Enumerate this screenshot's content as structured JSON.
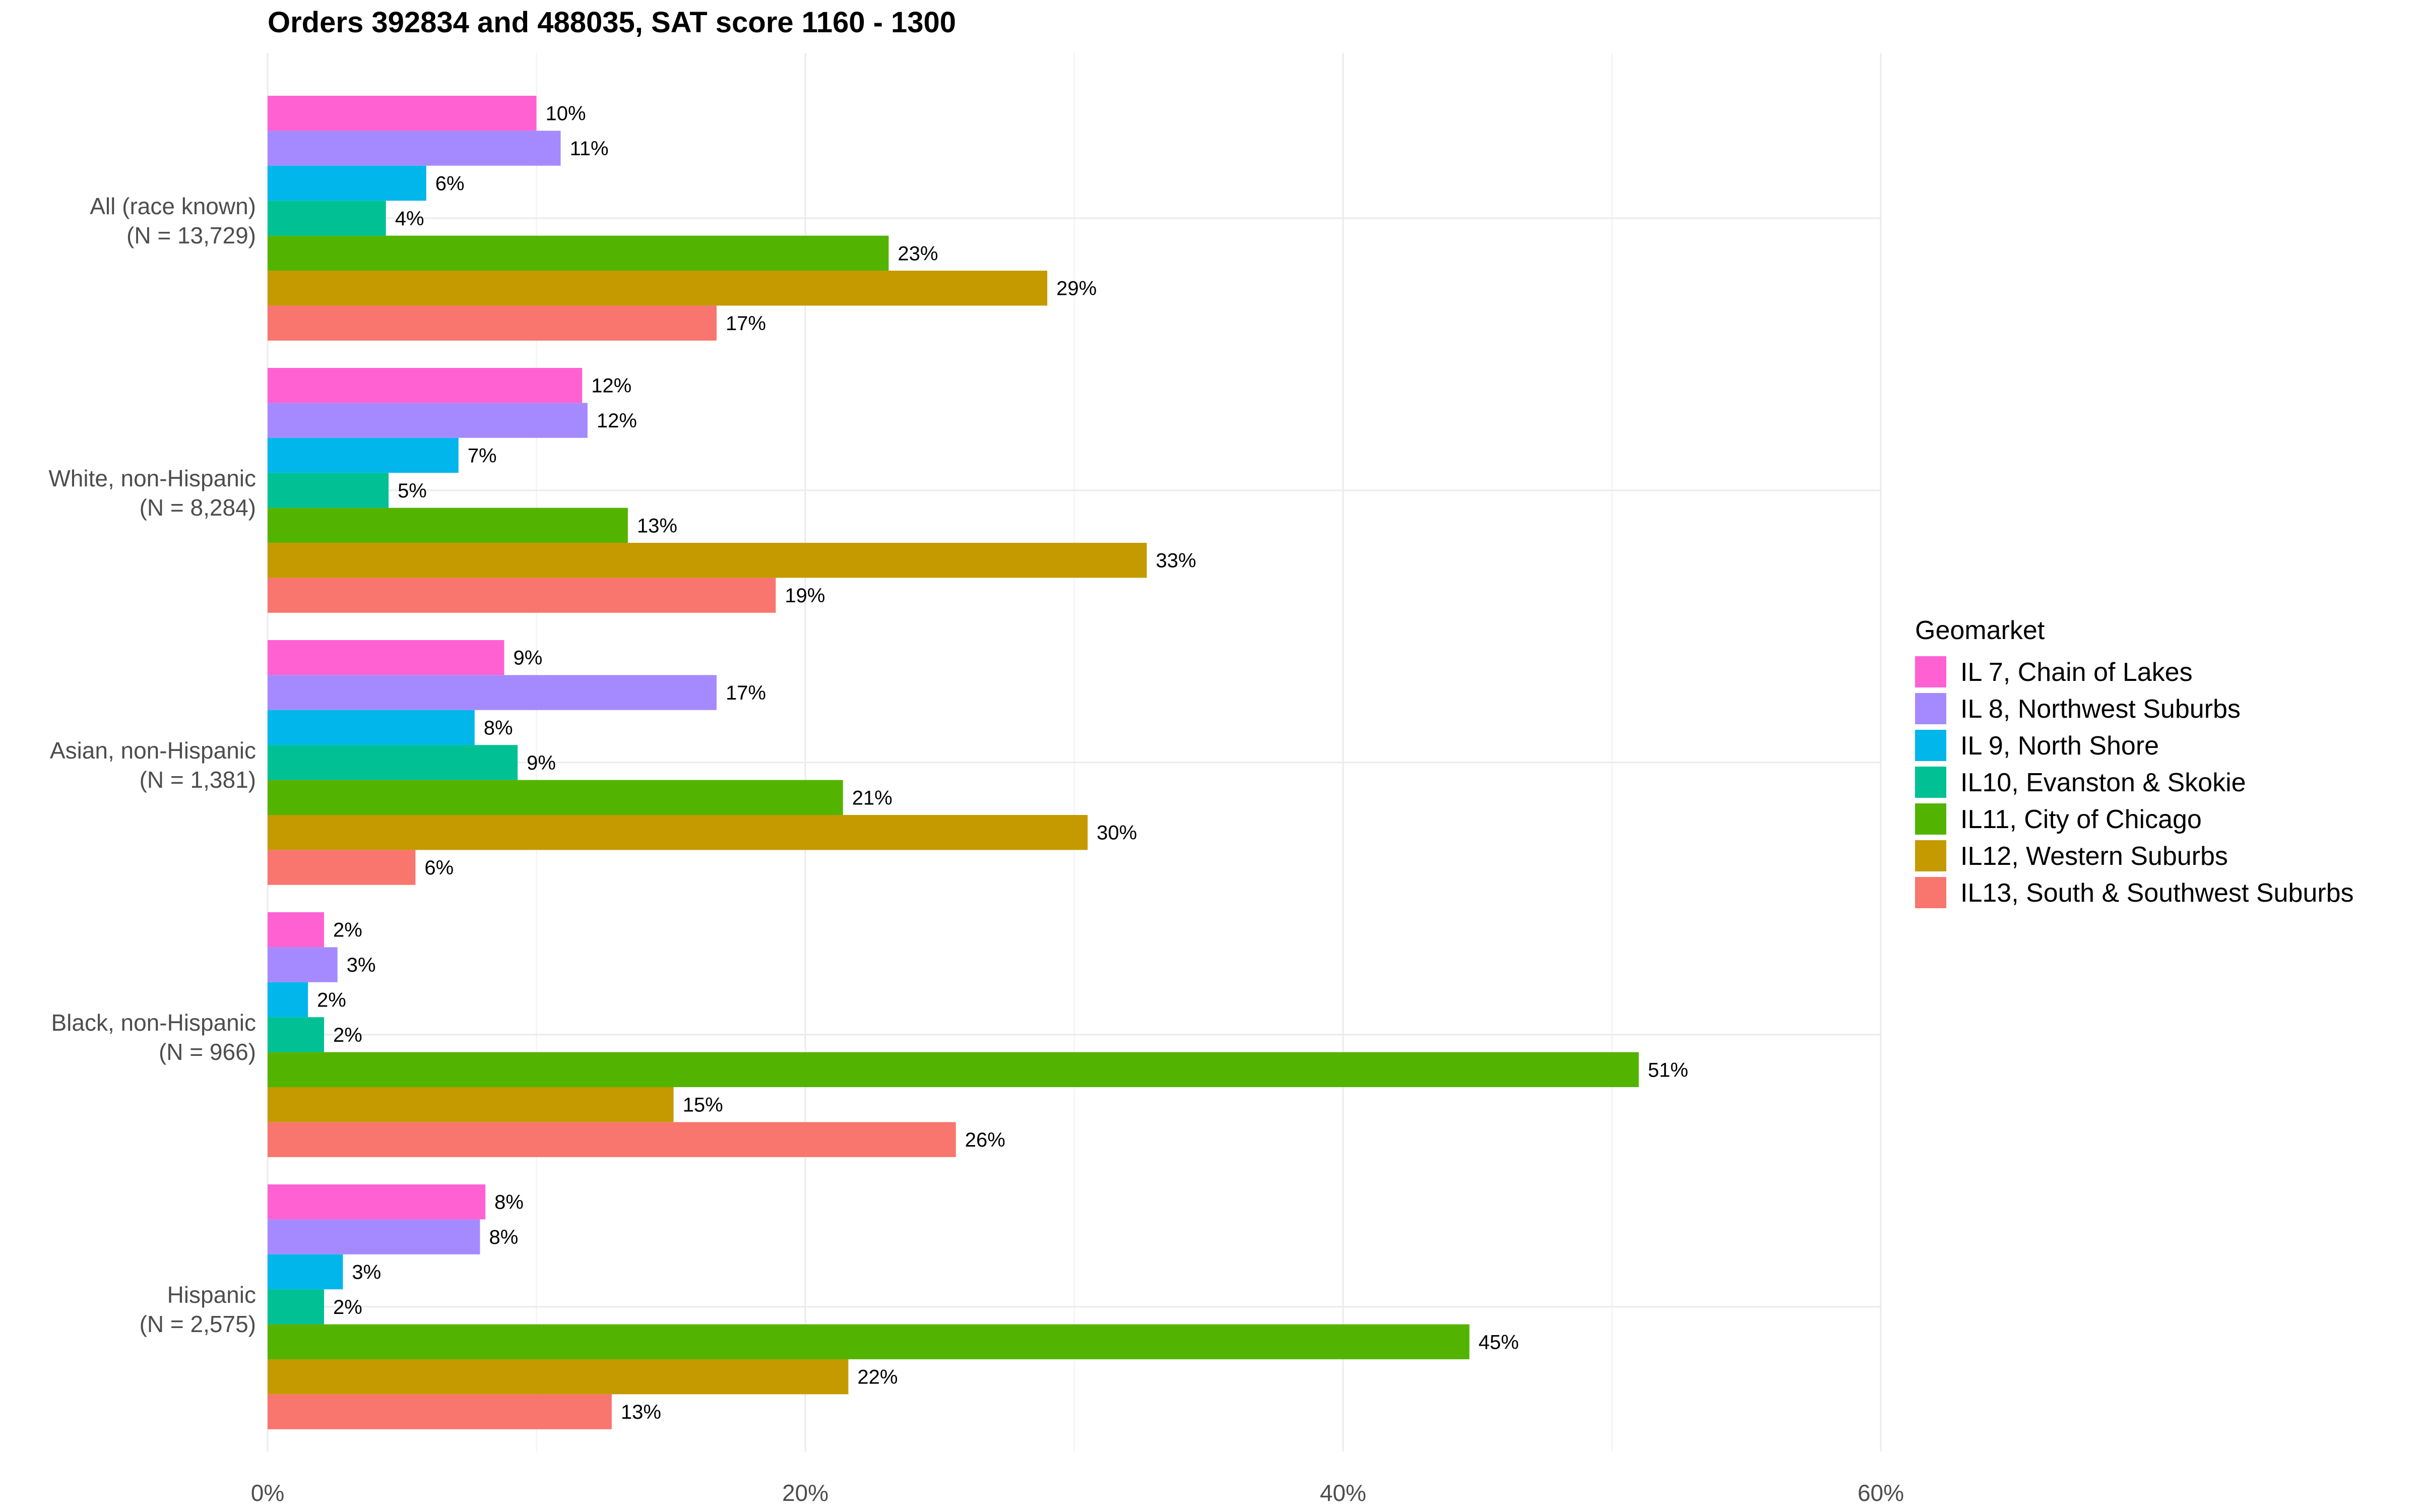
{
  "chart_data": {
    "type": "bar",
    "orientation": "horizontal",
    "title": "Orders 392834 and 488035, SAT score 1160 - 1300",
    "xlabel": "",
    "ylabel": "",
    "xlim": [
      0,
      60
    ],
    "x_ticks": [
      0,
      20,
      40,
      60
    ],
    "x_tick_labels": [
      "0%",
      "20%",
      "40%",
      "60%"
    ],
    "grid": true,
    "legend_title": "Geomarket",
    "legend_position": "right",
    "categories": [
      {
        "name": "All (race known)",
        "n": "(N = 13,729)"
      },
      {
        "name": "White, non-Hispanic",
        "n": "(N = 8,284)"
      },
      {
        "name": "Asian, non-Hispanic",
        "n": "(N = 1,381)"
      },
      {
        "name": "Black, non-Hispanic",
        "n": "(N = 966)"
      },
      {
        "name": "Hispanic",
        "n": "(N = 2,575)"
      }
    ],
    "series": [
      {
        "name": "IL 7, Chain of Lakes",
        "color": "#FF61D2",
        "values": [
          10,
          11.7,
          8.8,
          2.1,
          8.1
        ],
        "labels": [
          "10%",
          "12%",
          "9%",
          "2%",
          "8%"
        ]
      },
      {
        "name": "IL 8, Northwest Suburbs",
        "color": "#A58AFF",
        "values": [
          10.9,
          11.9,
          16.7,
          2.6,
          7.9
        ],
        "labels": [
          "11%",
          "12%",
          "17%",
          "3%",
          "8%"
        ]
      },
      {
        "name": "IL 9, North Shore",
        "color": "#00B6EB",
        "values": [
          5.9,
          7.1,
          7.7,
          1.5,
          2.8
        ],
        "labels": [
          "6%",
          "7%",
          "8%",
          "2%",
          "3%"
        ]
      },
      {
        "name": "IL10, Evanston & Skokie",
        "color": "#00C094",
        "values": [
          4.4,
          4.5,
          9.3,
          2.1,
          2.1
        ],
        "labels": [
          "4%",
          "5%",
          "9%",
          "2%",
          "2%"
        ]
      },
      {
        "name": "IL11, City of Chicago",
        "color": "#53B400",
        "values": [
          23.1,
          13.4,
          21.4,
          51,
          44.7
        ],
        "labels": [
          "23%",
          "13%",
          "21%",
          "51%",
          "45%"
        ]
      },
      {
        "name": "IL12, Western Suburbs",
        "color": "#C49A00",
        "values": [
          29,
          32.7,
          30.5,
          15.1,
          21.6
        ],
        "labels": [
          "29%",
          "33%",
          "30%",
          "15%",
          "22%"
        ]
      },
      {
        "name": "IL13, South & Southwest Suburbs",
        "color": "#F8766D",
        "values": [
          16.7,
          18.9,
          5.5,
          25.6,
          12.8
        ],
        "labels": [
          "17%",
          "19%",
          "6%",
          "26%",
          "13%"
        ]
      }
    ]
  }
}
